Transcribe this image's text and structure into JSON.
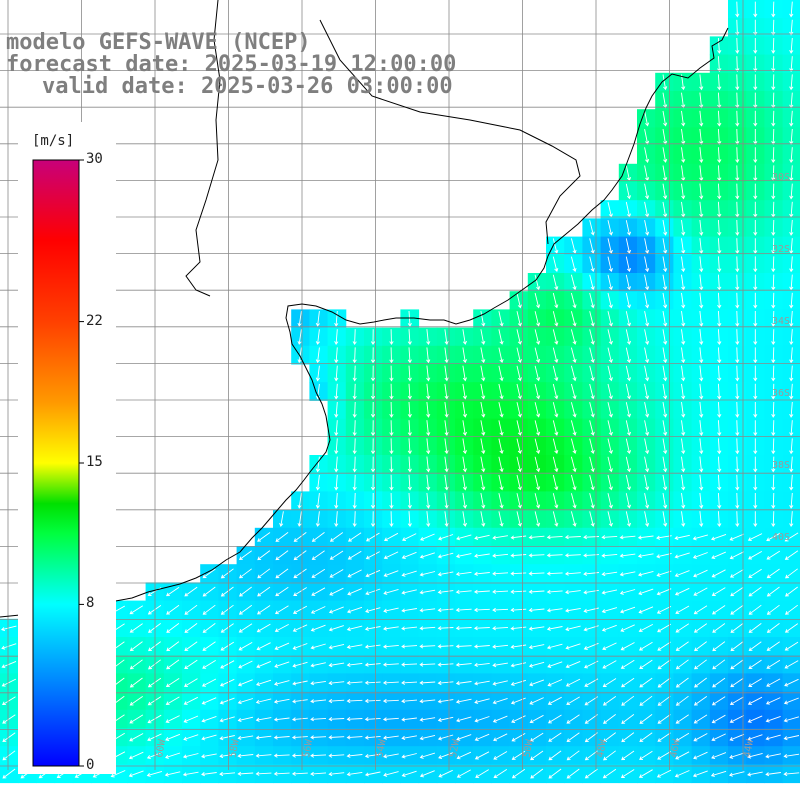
{
  "header": {
    "line1": "modelo GEFS-WAVE (NCEP)",
    "line2": "forecast date: 2025-03-19 12:00:00",
    "line3": "valid date: 2025-03-26 03:00:00"
  },
  "colorbar": {
    "unit": "[m/s]",
    "ticks": [
      {
        "label": "30",
        "value": 30
      },
      {
        "label": "22",
        "value": 22
      },
      {
        "label": "15",
        "value": 15
      },
      {
        "label": "8",
        "value": 8
      },
      {
        "label": "0",
        "value": 0
      }
    ],
    "min": 0,
    "max": 30,
    "stops": [
      {
        "value": 0,
        "color": "#0000ff"
      },
      {
        "value": 4,
        "color": "#0080ff"
      },
      {
        "value": 8,
        "color": "#00ffff"
      },
      {
        "value": 11.5,
        "color": "#00ff40"
      },
      {
        "value": 13,
        "color": "#00e000"
      },
      {
        "value": 15,
        "color": "#ffff00"
      },
      {
        "value": 18,
        "color": "#ff9900"
      },
      {
        "value": 22,
        "color": "#ff4000"
      },
      {
        "value": 26,
        "color": "#ff0000"
      },
      {
        "value": 30,
        "color": "#c8007a"
      }
    ]
  },
  "map": {
    "land_color": "#ffffff",
    "grid_color": "#8a8a8a",
    "coast_color": "#000000",
    "arrow_color": "#ffffff"
  },
  "lat_labels": [
    "30S",
    "32S",
    "34S",
    "36S",
    "38S",
    "40S"
  ],
  "lon_labels": [
    "60W",
    "58W",
    "56W",
    "54W",
    "52W",
    "50W",
    "48W",
    "46W",
    "44W",
    "42W"
  ]
}
